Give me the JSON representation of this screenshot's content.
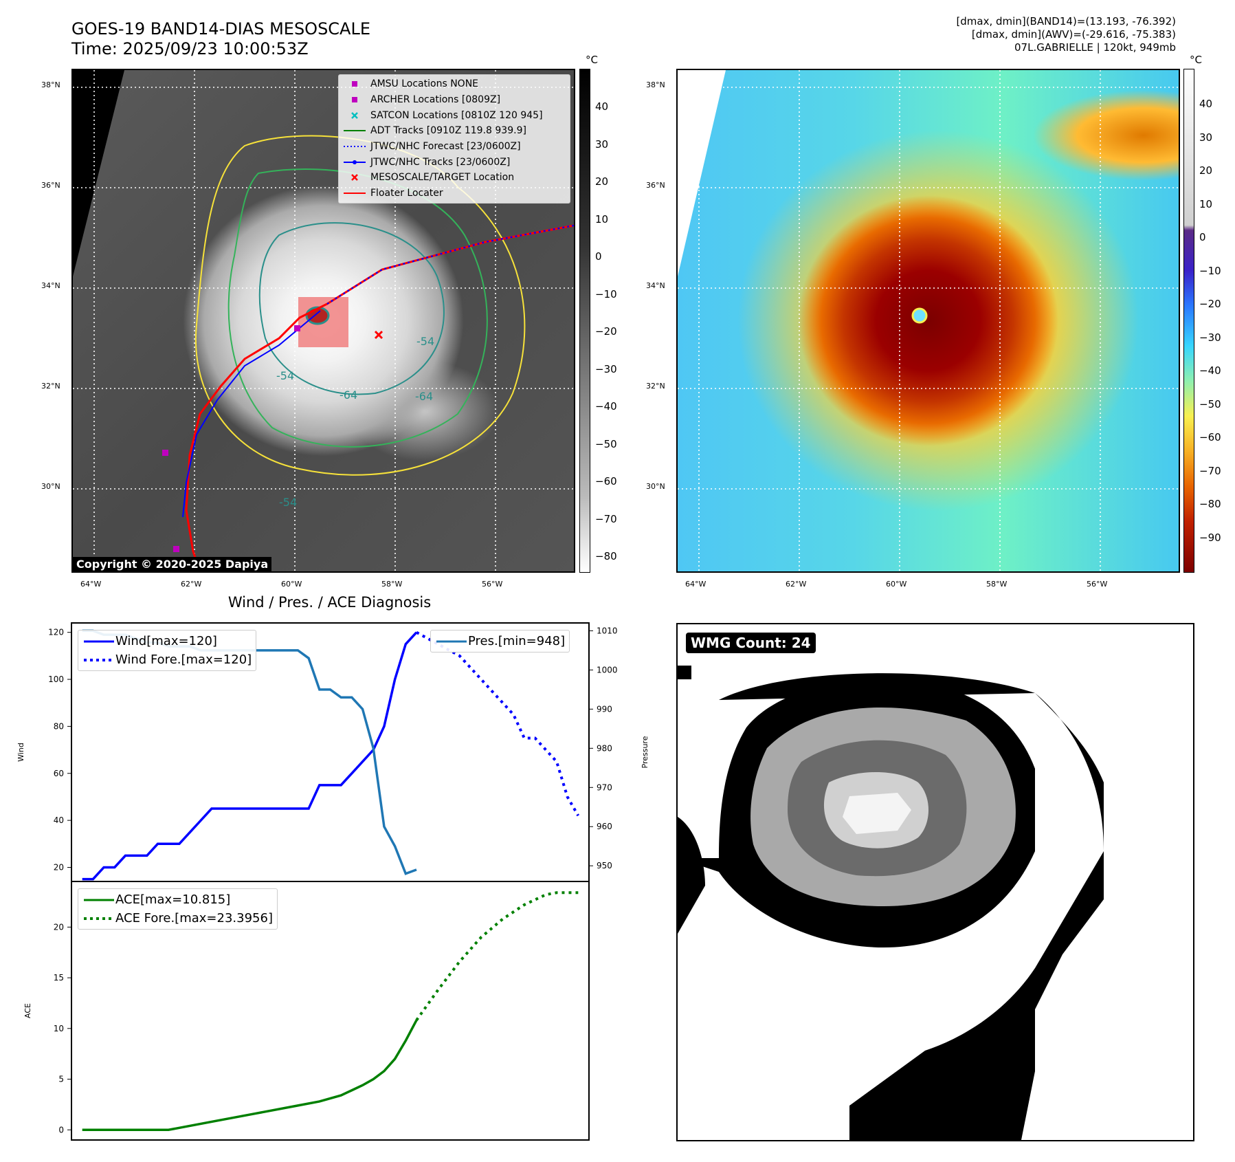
{
  "header": {
    "title_line1": "GOES-19 BAND14-DIAS MESOSCALE",
    "title_line2": "Time: 2025/09/23 10:00:53Z",
    "info_line1": "[dmax, dmin](BAND14)=(13.193, -76.392)",
    "info_line2": "[dmax, dmin](AWV)=(-29.616, -75.383)",
    "info_line3": "07L.GABRIELLE | 120kt, 949mb"
  },
  "maps": {
    "lat_labels": [
      "38°N",
      "36°N",
      "34°N",
      "32°N",
      "30°N"
    ],
    "lon_labels": [
      "64°W",
      "62°W",
      "60°W",
      "58°W",
      "56°W"
    ],
    "contour_labels": [
      "-54",
      "-54",
      "-64",
      "-64",
      "-54"
    ],
    "copyright": "Copyright © 2020-2025 Dapiya",
    "colors": {
      "yellow_contour": "#f7e23a",
      "green_contour": "#34b35a",
      "teal_contour": "#2a8f8a",
      "floater_box": "#f08080"
    }
  },
  "legend": [
    {
      "symbol": "square",
      "color": "#bf00bf",
      "text": "AMSU Locations NONE"
    },
    {
      "symbol": "square",
      "color": "#bf00bf",
      "text": "ARCHER Locations [0809Z]"
    },
    {
      "symbol": "x",
      "color": "#00bfbf",
      "text": "SATCON Locations [0810Z 120 945]"
    },
    {
      "symbol": "line",
      "color": "#008000",
      "text": "ADT Tracks [0910Z 119.8 939.9]"
    },
    {
      "symbol": "dotted",
      "color": "#0000ff",
      "text": "JTWC/NHC Forecast [23/0600Z]"
    },
    {
      "symbol": "line-dot",
      "color": "#0000ff",
      "text": "JTWC/NHC Tracks [23/0600Z]"
    },
    {
      "symbol": "x",
      "color": "#ff0000",
      "text": "MESOSCALE/TARGET Location"
    },
    {
      "symbol": "line",
      "color": "#ff0000",
      "text": "Floater Locater"
    }
  ],
  "colorbar_gray": {
    "unit": "°C",
    "ticks": [
      "40",
      "30",
      "20",
      "10",
      "0",
      "−10",
      "−20",
      "−30",
      "−40",
      "−50",
      "−60",
      "−70",
      "−80"
    ]
  },
  "colorbar_color": {
    "unit": "°C",
    "ticks": [
      "40",
      "30",
      "20",
      "10",
      "0",
      "−10",
      "−20",
      "−30",
      "−40",
      "−50",
      "−60",
      "−70",
      "−80",
      "−90"
    ]
  },
  "chart_data": [
    {
      "type": "line",
      "title": "Wind / Pres. / ACE Diagnosis",
      "ylabel": "Wind",
      "y2label": "Pressure",
      "ylim": [
        14,
        124
      ],
      "y2lim": [
        946,
        1012
      ],
      "yticks": [
        "20",
        "40",
        "60",
        "80",
        "100",
        "120"
      ],
      "y2ticks": [
        "950",
        "960",
        "970",
        "980",
        "990",
        "1000",
        "1010"
      ],
      "legend_left": [
        "Wind[max=120]",
        "Wind Fore.[max=120]"
      ],
      "legend_right": [
        "Pres.[min=948]"
      ],
      "series": [
        {
          "name": "Wind[max=120]",
          "axis": "left",
          "color": "#0000ff",
          "style": "solid",
          "x": [
            0,
            1,
            2,
            3,
            4,
            5,
            6,
            7,
            8,
            9,
            10,
            11,
            12,
            13,
            14,
            15,
            16,
            17,
            18,
            19,
            20,
            21,
            22,
            23,
            24,
            25,
            26,
            27,
            28,
            29,
            30,
            31
          ],
          "values": [
            15,
            15,
            20,
            20,
            25,
            25,
            25,
            30,
            30,
            30,
            35,
            40,
            45,
            45,
            45,
            45,
            45,
            45,
            45,
            45,
            45,
            45,
            55,
            55,
            55,
            60,
            65,
            70,
            80,
            100,
            115,
            120
          ]
        },
        {
          "name": "Wind Fore.[max=120]",
          "axis": "left",
          "color": "#0000ff",
          "style": "dotted",
          "x": [
            31,
            33,
            35,
            37,
            38,
            39,
            40,
            41,
            42,
            43,
            44,
            45,
            46
          ],
          "values": [
            120,
            115,
            110,
            100,
            95,
            90,
            85,
            75,
            75,
            70,
            65,
            50,
            42
          ]
        },
        {
          "name": "Pres.[min=948]",
          "axis": "right",
          "color": "#1f77b4",
          "style": "solid",
          "x": [
            0,
            1,
            2,
            3,
            4,
            5,
            6,
            7,
            8,
            9,
            10,
            11,
            12,
            13,
            14,
            15,
            16,
            17,
            18,
            19,
            20,
            21,
            22,
            23,
            24,
            25,
            26,
            27,
            28,
            29,
            30,
            31
          ],
          "values": [
            1010,
            1010,
            1009,
            1009,
            1009,
            1008,
            1007,
            1007,
            1006,
            1006,
            1006,
            1005,
            1005,
            1005,
            1005,
            1005,
            1005,
            1005,
            1005,
            1005,
            1005,
            1003,
            995,
            995,
            993,
            993,
            990,
            980,
            960,
            955,
            948,
            949
          ]
        }
      ]
    },
    {
      "type": "line",
      "ylabel": "ACE",
      "ylim": [
        -1,
        24.5
      ],
      "yticks": [
        "0",
        "5",
        "10",
        "15",
        "20"
      ],
      "legend": [
        "ACE[max=10.815]",
        "ACE Fore.[max=23.3956]"
      ],
      "series": [
        {
          "name": "ACE[max=10.815]",
          "color": "#008000",
          "style": "solid",
          "x": [
            0,
            4,
            8,
            12,
            16,
            20,
            22,
            24,
            25,
            26,
            27,
            28,
            29,
            30,
            31
          ],
          "values": [
            0,
            0,
            0,
            0.8,
            1.6,
            2.4,
            2.8,
            3.4,
            3.9,
            4.4,
            5.0,
            5.8,
            7.0,
            8.8,
            10.815
          ]
        },
        {
          "name": "ACE Fore.[max=23.3956]",
          "color": "#008000",
          "style": "dotted",
          "x": [
            31,
            33,
            35,
            37,
            39,
            41,
            43,
            44,
            45,
            46
          ],
          "values": [
            10.815,
            13.8,
            16.6,
            19.0,
            20.8,
            22.2,
            23.2,
            23.3956,
            23.3956,
            23.3956
          ]
        }
      ]
    }
  ],
  "wmg": {
    "badge": "WMG Count: 24"
  }
}
